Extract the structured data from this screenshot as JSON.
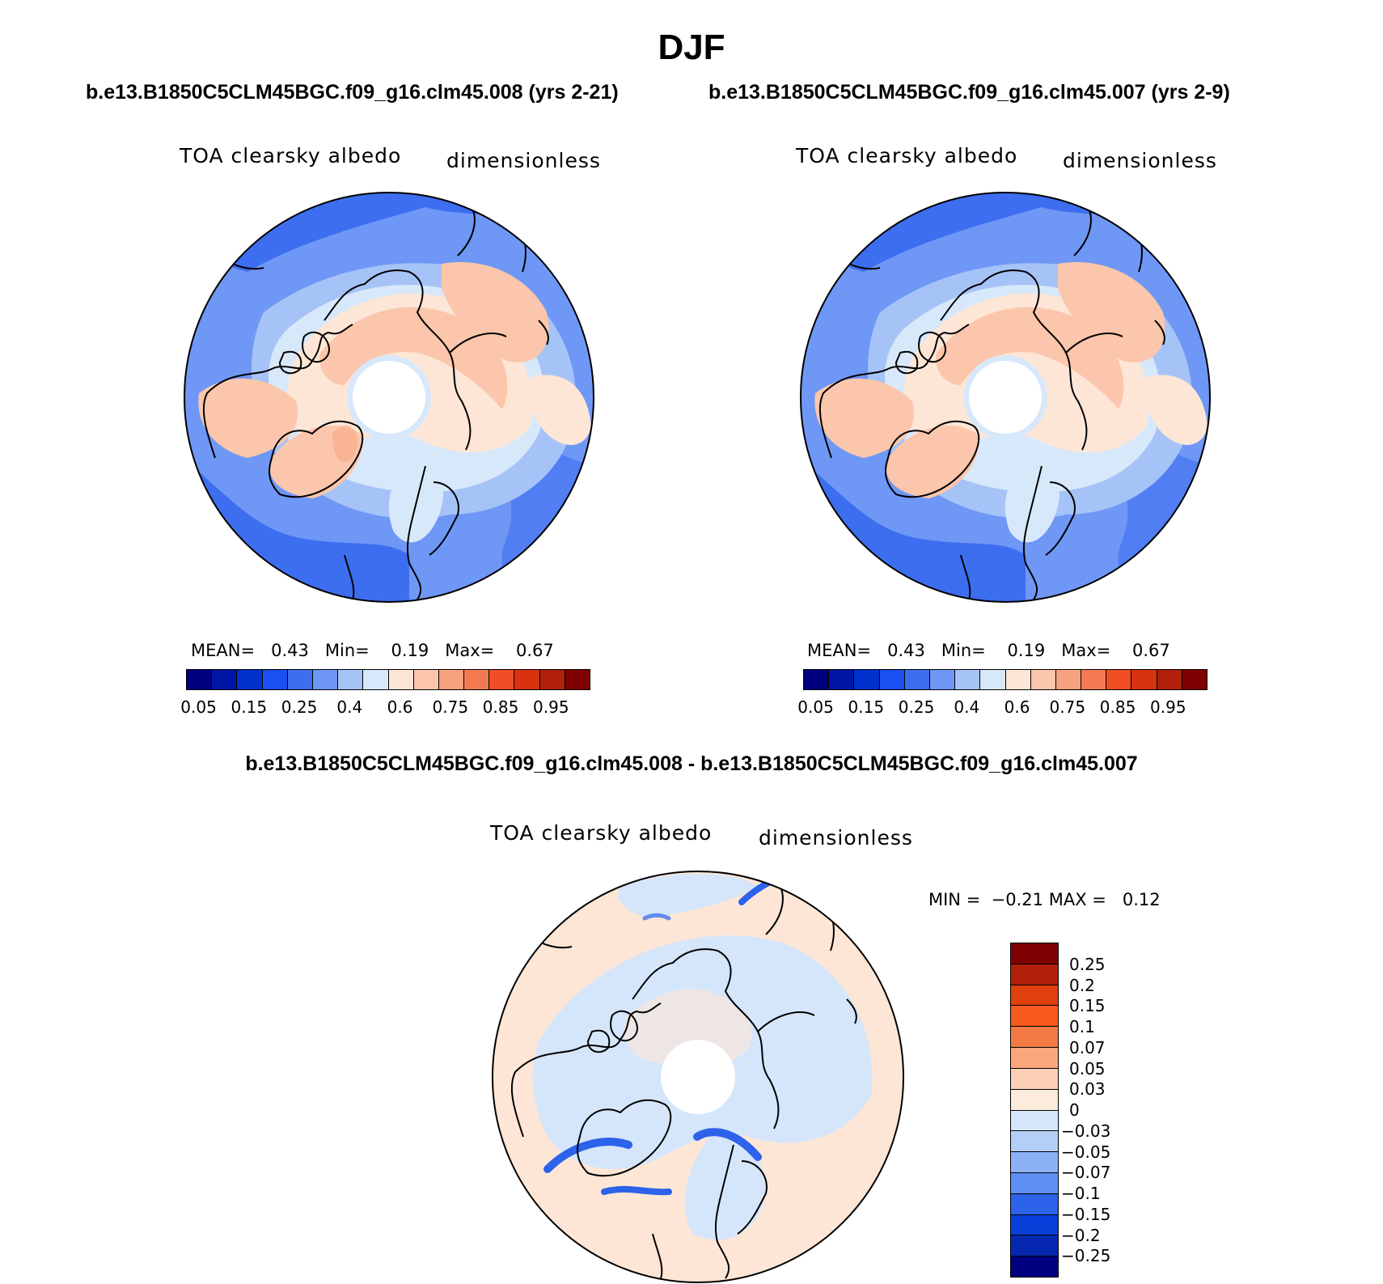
{
  "season": "DJF",
  "panels": [
    {
      "run_title": "b.e13.B1850C5CLM45BGC.f09_g16.clm45.008 (yrs 2-21)",
      "var_label": "TOA clearsky albedo",
      "units": "dimensionless",
      "stats": {
        "mean_label": "MEAN=",
        "mean": "0.43",
        "min_label": "Min=",
        "min": "0.19",
        "max_label": "Max=",
        "max": "0.67"
      }
    },
    {
      "run_title": "b.e13.B1850C5CLM45BGC.f09_g16.clm45.007 (yrs 2-9)",
      "var_label": "TOA clearsky albedo",
      "units": "dimensionless",
      "stats": {
        "mean_label": "MEAN=",
        "mean": "0.43",
        "min_label": "Min=",
        "min": "0.19",
        "max_label": "Max=",
        "max": "0.67"
      }
    }
  ],
  "abs_colorbar": {
    "colors": [
      "#00007f",
      "#0017a6",
      "#0031cc",
      "#1a4ff2",
      "#3d6ef0",
      "#6f97f5",
      "#a6c3f7",
      "#d8e8fb",
      "#fde6d6",
      "#fbc6ab",
      "#f7a27e",
      "#f47a52",
      "#f04e24",
      "#d93210",
      "#b1200a",
      "#7f0000"
    ],
    "ticks": [
      "0.05",
      "0.15",
      "0.25",
      "0.4",
      "0.6",
      "0.75",
      "0.85",
      "0.95"
    ]
  },
  "diff": {
    "title": "b.e13.B1850C5CLM45BGC.f09_g16.clm45.008 - b.e13.B1850C5CLM45BGC.f09_g16.clm45.007",
    "var_label": "TOA clearsky albedo",
    "units": "dimensionless",
    "stats": {
      "min_label": "MIN =",
      "min": "−0.21",
      "max_label": "MAX =",
      "max": "0.12"
    },
    "colorbar": {
      "colors": [
        "#7f0000",
        "#b1200a",
        "#e0400e",
        "#f75a1c",
        "#f47a45",
        "#fba77d",
        "#fcd0b4",
        "#fdebdc",
        "#d6e6fa",
        "#b4cff7",
        "#8cb2f5",
        "#5f8ff2",
        "#2d62ea",
        "#0a3ed8",
        "#0628b0",
        "#00007f"
      ],
      "ticks": [
        "0.25",
        "0.2",
        "0.15",
        "0.1",
        "0.07",
        "0.05",
        "0.03",
        "0",
        "−0.03",
        "−0.05",
        "−0.07",
        "−0.1",
        "−0.15",
        "−0.2",
        "−0.25"
      ]
    }
  },
  "map_colors": {
    "ocean_deep": "#3d6ef0",
    "ocean_mid": "#6f97f5",
    "ocean_light": "#a6c3f7",
    "pale_blue": "#d8e8fb",
    "land_pale": "#fde6d6",
    "land_salmon": "#fbc6ab",
    "land_orange": "#f7a27e",
    "diff_bg": "#fde6d6",
    "diff_blue_light": "#d6e6fa",
    "diff_blue": "#2d62ea"
  }
}
